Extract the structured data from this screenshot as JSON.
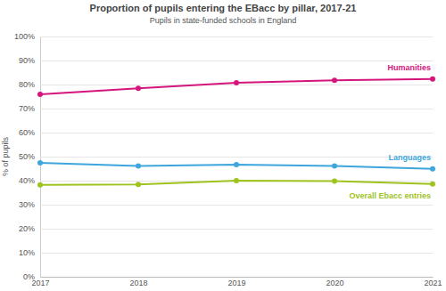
{
  "chart_data": {
    "type": "line",
    "title": "Proportion of pupils entering the EBacc by pillar, 2017-21",
    "subtitle": "Pupils in state-funded schools in England",
    "y_label": "% of pupils",
    "x": [
      2017,
      2018,
      2019,
      2020,
      2021
    ],
    "xlim": [
      2017,
      2021
    ],
    "xticks": [
      2017,
      2018,
      2019,
      2020,
      2021
    ],
    "ylim": [
      0,
      100
    ],
    "yticks": [
      {
        "value": 0,
        "label": "0%"
      },
      {
        "value": 10,
        "label": "10%"
      },
      {
        "value": 20,
        "label": "20%"
      },
      {
        "value": 30,
        "label": "30%"
      },
      {
        "value": 40,
        "label": "40%"
      },
      {
        "value": 50,
        "label": "50%"
      },
      {
        "value": 60,
        "label": "60%"
      },
      {
        "value": 70,
        "label": "70%"
      },
      {
        "value": 80,
        "label": "80%"
      },
      {
        "value": 90,
        "label": "90%"
      },
      {
        "value": 100,
        "label": "100%"
      }
    ],
    "grid": true,
    "marker": "circle",
    "series": [
      {
        "name": "Humanities",
        "color": "#d4167c",
        "values": [
          75.9,
          78.4,
          80.7,
          81.8,
          82.3
        ]
      },
      {
        "name": "Languages",
        "color": "#3ea6dd",
        "values": [
          47.4,
          46.1,
          46.7,
          46.1,
          44.9
        ]
      },
      {
        "name": "Overall Ebacc entries",
        "color": "#9ec31f",
        "values": [
          38.2,
          38.4,
          40.0,
          39.8,
          38.6
        ]
      }
    ]
  }
}
